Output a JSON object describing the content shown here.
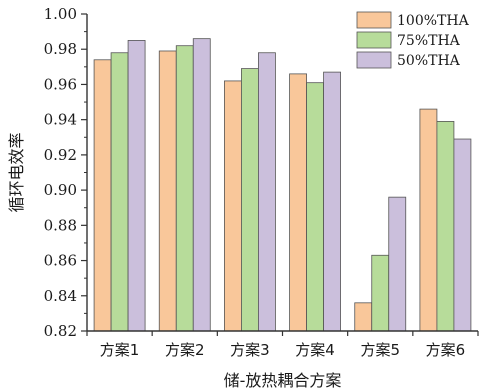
{
  "chart_data": {
    "type": "bar",
    "title": "",
    "xlabel": "储-放热耦合方案",
    "ylabel": "循环电效率",
    "categories": [
      "方案1",
      "方案2",
      "方案3",
      "方案4",
      "方案5",
      "方案6"
    ],
    "ylim": [
      0.82,
      1.0
    ],
    "yticks": [
      "0.82",
      "0.84",
      "0.86",
      "0.88",
      "0.90",
      "0.92",
      "0.94",
      "0.96",
      "0.98",
      "1.00"
    ],
    "grid": false,
    "legend_position": "top-right",
    "series": [
      {
        "name": "100%THA",
        "color": "#f9c79a",
        "values": [
          0.974,
          0.979,
          0.962,
          0.966,
          0.836,
          0.946
        ]
      },
      {
        "name": "75%THA",
        "color": "#b7dc9a",
        "values": [
          0.978,
          0.982,
          0.969,
          0.961,
          0.863,
          0.939
        ]
      },
      {
        "name": "50%THA",
        "color": "#cbbfdc",
        "values": [
          0.985,
          0.986,
          0.978,
          0.967,
          0.896,
          0.929
        ]
      }
    ]
  }
}
